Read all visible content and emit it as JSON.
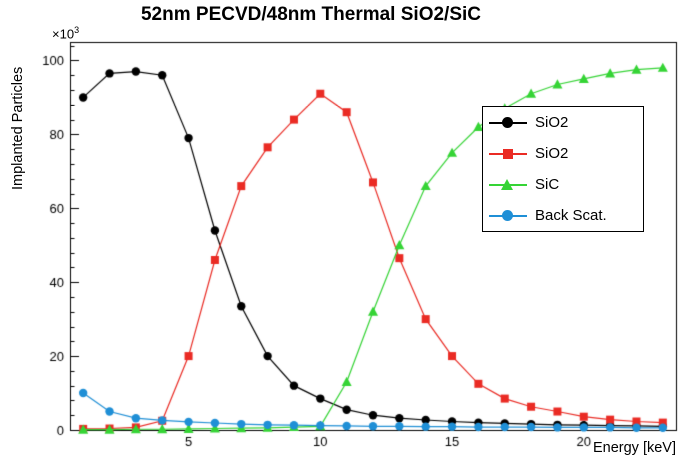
{
  "title": "52nm PECVD/48nm Thermal SiO2/SiC",
  "axes": {
    "y_scale_prefix": "×10",
    "y_scale_exp": "3"
  },
  "chart_data": {
    "type": "line",
    "title": "52nm PECVD/48nm Thermal SiO2/SiC",
    "xlabel": "Energy [keV]",
    "ylabel": "Implanted Particles",
    "y_multiplier_label": "×10^3",
    "grid": false,
    "legend_position": "middle-right",
    "xlim": [
      0.5,
      23.5
    ],
    "ylim": [
      0,
      105
    ],
    "x_major_ticks": [
      5,
      10,
      15,
      20
    ],
    "x_minor_step": 1,
    "y_major_ticks": [
      0,
      20,
      40,
      60,
      80,
      100
    ],
    "y_minor_step": 4,
    "x": [
      1,
      2,
      3,
      4,
      5,
      6,
      7,
      8,
      9,
      10,
      11,
      12,
      13,
      14,
      15,
      16,
      17,
      18,
      19,
      20,
      21,
      22,
      23
    ],
    "series": [
      {
        "name": "SiO2",
        "marker": "circle",
        "color": "#000000",
        "values": [
          90,
          96.5,
          97,
          96,
          79,
          54,
          33.5,
          20,
          12,
          8.5,
          5.5,
          4,
          3.2,
          2.7,
          2.3,
          2,
          1.8,
          1.6,
          1.4,
          1.3,
          1.2,
          1.1,
          1
        ]
      },
      {
        "name": "SiO2",
        "marker": "square",
        "color": "#ea2b24",
        "values": [
          0.3,
          0.4,
          0.7,
          2.5,
          20,
          46,
          66,
          76.5,
          84,
          91,
          86,
          67,
          46.5,
          30,
          20,
          12.5,
          8.5,
          6.3,
          5,
          3.6,
          2.8,
          2.3,
          2
        ]
      },
      {
        "name": "SiC",
        "marker": "triangle",
        "color": "#35d435",
        "values": [
          0.1,
          0.1,
          0.2,
          0.2,
          0.3,
          0.4,
          0.5,
          0.6,
          0.8,
          1,
          13,
          32,
          50,
          66,
          75,
          82,
          87,
          91,
          93.5,
          95,
          96.5,
          97.5,
          98
        ]
      },
      {
        "name": "Back Scat.",
        "marker": "circle",
        "color": "#1f8fd6",
        "values": [
          10,
          5,
          3.2,
          2.6,
          2.2,
          1.9,
          1.6,
          1.4,
          1.3,
          1.2,
          1.1,
          1,
          1,
          0.9,
          0.9,
          0.8,
          0.8,
          0.8,
          0.7,
          0.7,
          0.7,
          0.6,
          0.6
        ]
      }
    ]
  }
}
